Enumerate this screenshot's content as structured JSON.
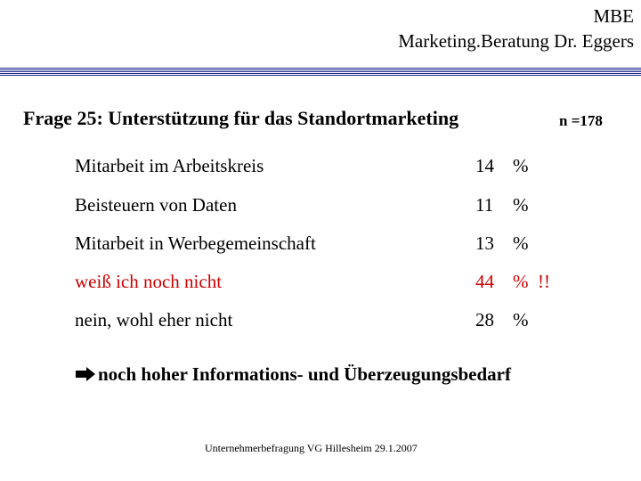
{
  "header": {
    "line1": "MBE",
    "line2": "Marketing.Beratung Dr. Eggers"
  },
  "question": {
    "title": "Frage 25: Unterstützung für das Standortmarketing",
    "n": "n =178"
  },
  "rows": [
    {
      "label": "Mitarbeit im Arbeitskreis",
      "value": "14",
      "unit": "%",
      "note": ""
    },
    {
      "label": "Beisteuern von Daten",
      "value": "11",
      "unit": "%",
      "note": ""
    },
    {
      "label": "Mitarbeit in Werbegemeinschaft",
      "value": "13",
      "unit": "%",
      "note": ""
    },
    {
      "label": "weiß ich noch nicht",
      "value": "44",
      "unit": "%",
      "note": "!!"
    },
    {
      "label": "nein, wohl eher nicht",
      "value": "28",
      "unit": "%",
      "note": ""
    }
  ],
  "conclusion": {
    "icon": "arrow-right-icon",
    "text": "noch hoher Informations- und Überzeugungsbedarf"
  },
  "footer": {
    "text": "Unternehmerbefragung VG Hillesheim 29.1.2007"
  },
  "colors": {
    "accent_rule": "#1f2a8c",
    "highlight": "#cc0000"
  }
}
